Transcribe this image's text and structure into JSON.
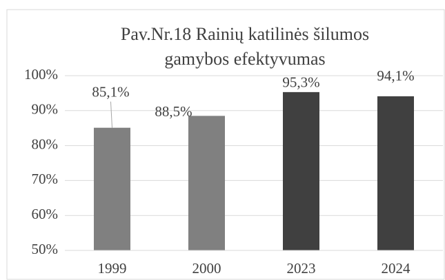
{
  "chart_data": {
    "type": "bar",
    "title": [
      "Pav.Nr.18 Rainių katilinės šilumos",
      "gamybos efektyvumas"
    ],
    "categories": [
      "1999",
      "2000",
      "2023",
      "2024"
    ],
    "values": [
      85.1,
      88.5,
      95.3,
      94.1
    ],
    "value_labels": [
      "85,1%",
      "88,5%",
      "95,3%",
      "94,1%"
    ],
    "colors": [
      "#808080",
      "#808080",
      "#404040",
      "#404040"
    ],
    "ylim": [
      50,
      100
    ],
    "yticks": [
      {
        "value": 50,
        "label": "50%"
      },
      {
        "value": 60,
        "label": "60%"
      },
      {
        "value": 70,
        "label": "70%"
      },
      {
        "value": 80,
        "label": "80%"
      },
      {
        "value": 90,
        "label": "90%"
      },
      {
        "value": 100,
        "label": "100%"
      }
    ],
    "grid": true
  }
}
